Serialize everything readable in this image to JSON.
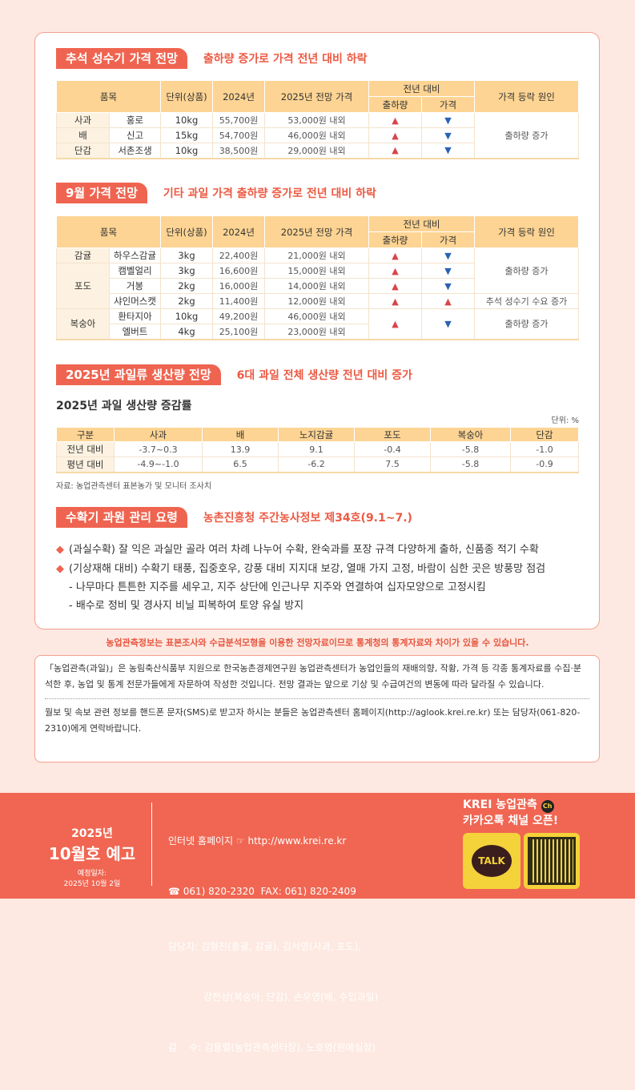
{
  "section1": {
    "tag": "추석 성수기 가격 전망",
    "subtitle": "출하량 증가로 가격 전년 대비 하락"
  },
  "section2": {
    "tag": "9월 가격 전망",
    "subtitle": "기타 과일 가격 출하량 증가로 전년 대비 하락"
  },
  "section3": {
    "tag": "2025년 과일류 생산량 전망",
    "subtitle": "6대 과일 전체 생산량 전년 대비 증가",
    "table_title": "2025년 과일 생산량 증감률",
    "unit": "단위: %",
    "source": "자료: 농업관측센터 표본농가 및 모니터 조사치"
  },
  "section4": {
    "tag": "수확기 과원 관리 요령",
    "subtitle": "농촌진흥청 주간농사정보 제34호(9.1~7.)"
  },
  "price_headers": {
    "item": "품목",
    "unit": "단위(상품)",
    "y2024": "2024년",
    "y2025": "2025년 전망 가격",
    "yoy": "전년 대비",
    "ship": "출하량",
    "price": "가격",
    "cause": "가격 등락 원인"
  },
  "table1": {
    "rows": [
      {
        "fruit": "사과",
        "variety": "홍로",
        "unit": "10kg",
        "p2024": "55,700원",
        "p2025": "53,000원 내외",
        "ship": "▲",
        "price": "▼"
      },
      {
        "fruit": "배",
        "variety": "신고",
        "unit": "15kg",
        "p2024": "54,700원",
        "p2025": "46,000원 내외",
        "ship": "▲",
        "price": "▼"
      },
      {
        "fruit": "단감",
        "variety": "서촌조생",
        "unit": "10kg",
        "p2024": "38,500원",
        "p2025": "29,000원 내외",
        "ship": "▲",
        "price": "▼"
      }
    ],
    "cause": "출하량 증가"
  },
  "table2": {
    "rows": [
      {
        "fruit": "감귤",
        "variety": "하우스감귤",
        "unit": "3kg",
        "p2024": "22,400원",
        "p2025": "21,000원 내외",
        "ship": "▲",
        "price": "▼"
      },
      {
        "fruit": "포도",
        "variety": "캠벨얼리",
        "unit": "3kg",
        "p2024": "16,600원",
        "p2025": "15,000원 내외",
        "ship": "▲",
        "price": "▼"
      },
      {
        "fruit": "",
        "variety": "거봉",
        "unit": "2kg",
        "p2024": "16,000원",
        "p2025": "14,000원 내외",
        "ship": "▲",
        "price": "▼"
      },
      {
        "fruit": "",
        "variety": "샤인머스캣",
        "unit": "2kg",
        "p2024": "11,400원",
        "p2025": "12,000원 내외",
        "ship": "▲",
        "price": "▲"
      },
      {
        "fruit": "복숭아",
        "variety": "환타지아",
        "unit": "10kg",
        "p2024": "49,200원",
        "p2025": "46,000원 내외",
        "ship": "▲",
        "price": "▼"
      },
      {
        "fruit": "",
        "variety": "엘버트",
        "unit": "4kg",
        "p2024": "25,100원",
        "p2025": "23,000원 내외",
        "ship": "",
        "price": ""
      }
    ],
    "cause_a": "출하량 증가",
    "cause_b": "추석 성수기 수요 증가",
    "cause_c": "출하량 증가"
  },
  "table3": {
    "headers": [
      "구분",
      "사과",
      "배",
      "노지감귤",
      "포도",
      "복숭아",
      "단감"
    ],
    "rows": [
      [
        "전년 대비",
        "-3.7~0.3",
        "13.9",
        "9.1",
        "-0.4",
        "-5.8",
        "-1.0"
      ],
      [
        "평년 대비",
        "-4.9~-1.0",
        "6.5",
        "-6.2",
        "7.5",
        "-5.8",
        "-0.9"
      ]
    ]
  },
  "tips": [
    "(과실수확) 잘 익은 과실만 골라 여러 차례 나누어 수확, 완숙과를 포장 규격 다양하게 출하, 신품종 적기 수확",
    "(기상재해 대비) 수확기 태풍, 집중호우, 강풍 대비 지지대 보강, 열매 가지 고정, 바람이 심한 곳은 방풍망 점검",
    "- 나무마다 튼튼한 지주를 세우고, 지주 상단에 인근나무 지주와 연결하여 십자모양으로 고정시킴",
    "- 배수로 정비 및 경사지 비닐 피복하여 토양 유실 방지"
  ],
  "notice": "농업관측정보는 표본조사와 수급분석모형을 이용한 전망자료이므로 통계청의 통계자료와 차이가 있을 수 있습니다.",
  "info": {
    "p1": "「농업관측(과일)」은 농림축산식품부 지원으로 한국농촌경제연구원 농업관측센터가 농업인들의 재배의향, 작황, 가격 등 각종 통계자료를 수집·분석한 후, 농업 및 통계 전문가들에게 자문하여 작성한 것입니다. 전망 결과는 앞으로 기상 및 수급여건의 변동에 따라 달라질 수 있습니다.",
    "p2": "월보 및 속보 관련 정보를 핸드폰 문자(SMS)로 받고자 하시는 분들은 농업관측센터 홈페이지(http://aglook.krei.re.kr) 또는 담당자(061-820-2310)에게 연락바랍니다."
  },
  "footer": {
    "year": "2025년",
    "issue": "10월호 예고",
    "sched_label": "예정일자:",
    "sched_date": "2025년 10월 2일",
    "homepage": "인터넷 홈페이지 ☞ http://www.krei.re.kr",
    "phone": "☎ 061) 820-2320  FAX: 061) 820-2409",
    "staff1": "담당자: 김형진(총괄, 감귤), 김서영(사과, 포도),",
    "staff2": "강전상(복숭아, 단감), 손우영(배, 수입과일)",
    "supervisor": "감    수: 김용렬(농업관측센터장), 노호영(원예실장)",
    "kakao1": "KREI 농업관측",
    "kakao_ch": "Ch",
    "kakao2": "카카오톡 채널 오픈!",
    "talk": "TALK"
  },
  "colors": {
    "accent": "#ef6450",
    "header": "#fdd493",
    "up": "#d9444a",
    "down": "#2a62b5",
    "footer": "#f06652"
  }
}
